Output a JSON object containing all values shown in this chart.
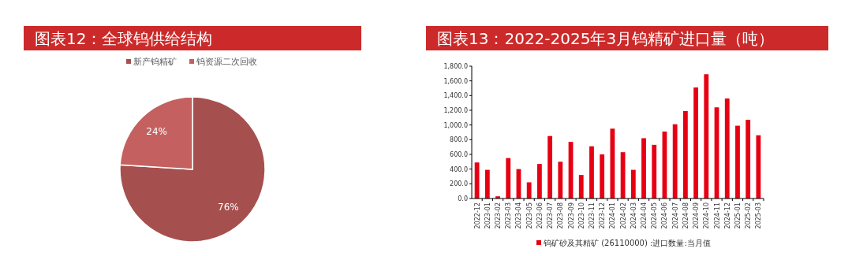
{
  "chart_data": [
    {
      "type": "pie",
      "title": "图表12：全球钨供给结构",
      "categories": [
        "新产钨精矿",
        "钨资源二次回收"
      ],
      "values": [
        76,
        24
      ],
      "colors": [
        "#a5504f",
        "#c46060"
      ],
      "value_labels": [
        "76%",
        "24%"
      ],
      "legend": "top"
    },
    {
      "type": "bar",
      "title": "图表13：2022-2025年3月钨精矿进口量（吨）",
      "categories": [
        "2022-12",
        "2023-01",
        "2023-02",
        "2023-03",
        "2023-04",
        "2023-05",
        "2023-06",
        "2023-07",
        "2023-08",
        "2023-09",
        "2023-10",
        "2023-11",
        "2023-12",
        "2024-01",
        "2024-02",
        "2024-03",
        "2024-04",
        "2024-05",
        "2024-06",
        "2024-07",
        "2024-08",
        "2024-09",
        "2024-10",
        "2024-11",
        "2024-12",
        "2025-01",
        "2025-02",
        "2025-03"
      ],
      "series": [
        {
          "name": "钨矿砂及其精矿 (26110000) :进口数量:当月值",
          "color": "#e60012",
          "values": [
            490,
            390,
            30,
            550,
            400,
            220,
            470,
            850,
            500,
            770,
            320,
            710,
            600,
            950,
            630,
            390,
            820,
            730,
            910,
            1010,
            1190,
            1510,
            1690,
            1240,
            1360,
            990,
            1070,
            860
          ]
        }
      ],
      "ylim": [
        0,
        1800
      ],
      "yticks": [
        {
          "value": 0,
          "label": "0.0"
        },
        {
          "value": 200,
          "label": "200.0"
        },
        {
          "value": 400,
          "label": "400.0"
        },
        {
          "value": 600,
          "label": "600.0"
        },
        {
          "value": 800,
          "label": "800.0"
        },
        {
          "value": 1000,
          "label": "1,000.0"
        },
        {
          "value": 1200,
          "label": "1,200.0"
        },
        {
          "value": 1400,
          "label": "1,400.0"
        },
        {
          "value": 1600,
          "label": "1,600.0"
        },
        {
          "value": 1800,
          "label": "1,800.0"
        }
      ],
      "grid": false,
      "legend": "bottom"
    }
  ]
}
